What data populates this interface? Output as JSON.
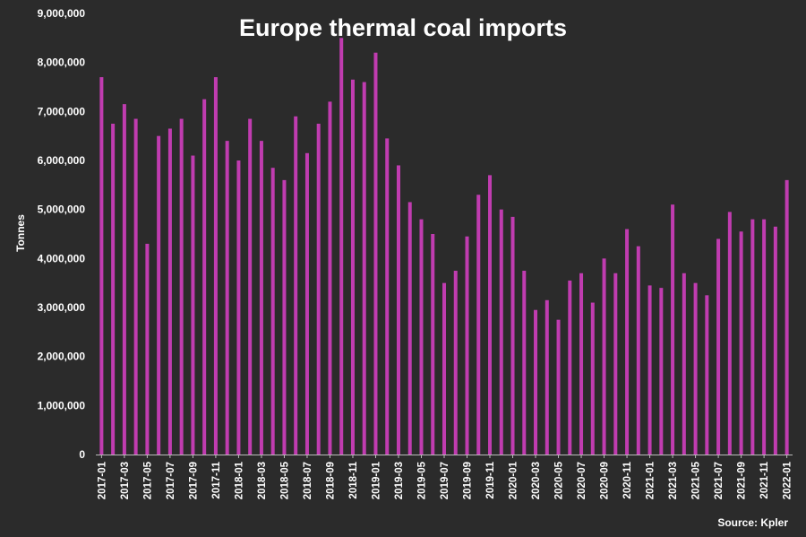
{
  "chart_data": {
    "type": "bar",
    "title": "Europe thermal coal imports",
    "ylabel": "Tonnes",
    "xlabel": "",
    "source": "Source: Kpler",
    "ylim": [
      0,
      9000000
    ],
    "yticks": [
      "0",
      "1,000,000",
      "2,000,000",
      "3,000,000",
      "4,000,000",
      "5,000,000",
      "6,000,000",
      "7,000,000",
      "8,000,000",
      "9,000,000"
    ],
    "ytick_values": [
      0,
      1000000,
      2000000,
      3000000,
      4000000,
      5000000,
      6000000,
      7000000,
      8000000,
      9000000
    ],
    "bar_color": "#c03cb0",
    "background_color": "#2b2b2b",
    "categories": [
      "2017-01",
      "2017-02",
      "2017-03",
      "2017-04",
      "2017-05",
      "2017-06",
      "2017-07",
      "2017-08",
      "2017-09",
      "2017-10",
      "2017-11",
      "2017-12",
      "2018-01",
      "2018-02",
      "2018-03",
      "2018-04",
      "2018-05",
      "2018-06",
      "2018-07",
      "2018-08",
      "2018-09",
      "2018-10",
      "2018-11",
      "2018-12",
      "2019-01",
      "2019-02",
      "2019-03",
      "2019-04",
      "2019-05",
      "2019-06",
      "2019-07",
      "2019-08",
      "2019-09",
      "2019-10",
      "2019-11",
      "2019-12",
      "2020-01",
      "2020-02",
      "2020-03",
      "2020-04",
      "2020-05",
      "2020-06",
      "2020-07",
      "2020-08",
      "2020-09",
      "2020-10",
      "2020-11",
      "2020-12",
      "2021-01",
      "2021-02",
      "2021-03",
      "2021-04",
      "2021-05",
      "2021-06",
      "2021-07",
      "2021-08",
      "2021-09",
      "2021-10",
      "2021-11",
      "2021-12",
      "2022-01"
    ],
    "tick_labels": [
      "2017-01",
      "2017-03",
      "2017-05",
      "2017-07",
      "2017-09",
      "2017-11",
      "2018-01",
      "2018-03",
      "2018-05",
      "2018-07",
      "2018-09",
      "2018-11",
      "2019-01",
      "2019-03",
      "2019-05",
      "2019-07",
      "2019-09",
      "2019-11",
      "2020-01",
      "2020-03",
      "2020-05",
      "2020-07",
      "2020-09",
      "2020-11",
      "2021-01",
      "2021-03",
      "2021-05",
      "2021-07",
      "2021-09",
      "2021-11",
      "2022-01"
    ],
    "values": [
      7700000,
      6750000,
      7150000,
      6850000,
      4300000,
      6500000,
      6650000,
      6850000,
      6100000,
      7250000,
      7700000,
      6400000,
      6000000,
      6850000,
      6400000,
      5850000,
      5600000,
      6900000,
      6150000,
      6750000,
      7200000,
      8500000,
      7650000,
      7600000,
      8200000,
      6450000,
      5900000,
      5150000,
      4800000,
      4500000,
      3500000,
      3750000,
      4450000,
      5300000,
      5700000,
      5000000,
      4850000,
      3750000,
      2950000,
      3150000,
      2750000,
      3550000,
      3700000,
      3100000,
      4000000,
      3700000,
      4600000,
      4250000,
      3450000,
      3400000,
      5100000,
      3700000,
      3500000,
      3250000,
      4400000,
      4950000,
      4550000,
      4800000,
      4800000,
      4650000,
      5600000
    ]
  }
}
